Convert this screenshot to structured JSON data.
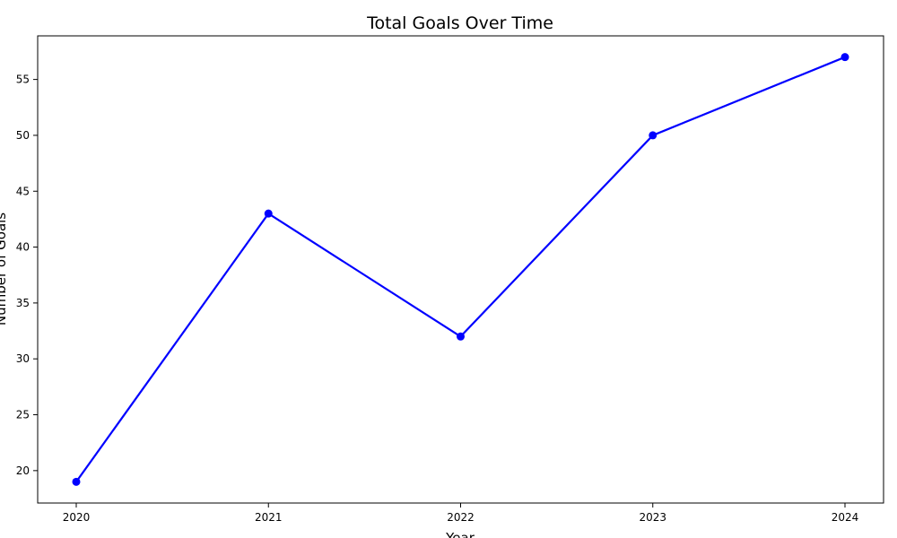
{
  "chart_data": {
    "type": "line",
    "title": "Total Goals Over Time",
    "xlabel": "Year",
    "ylabel": "Number of Goals",
    "x": [
      "2020",
      "2021",
      "2022",
      "2023",
      "2024"
    ],
    "series": [
      {
        "values": [
          19,
          43,
          32,
          50,
          57
        ]
      }
    ],
    "ylim": [
      17.1,
      58.9
    ],
    "yticks": [
      20,
      25,
      30,
      35,
      40,
      45,
      50,
      55
    ],
    "line_color": "#0000ff",
    "marker": "circle",
    "grid": false,
    "legend": "none"
  }
}
